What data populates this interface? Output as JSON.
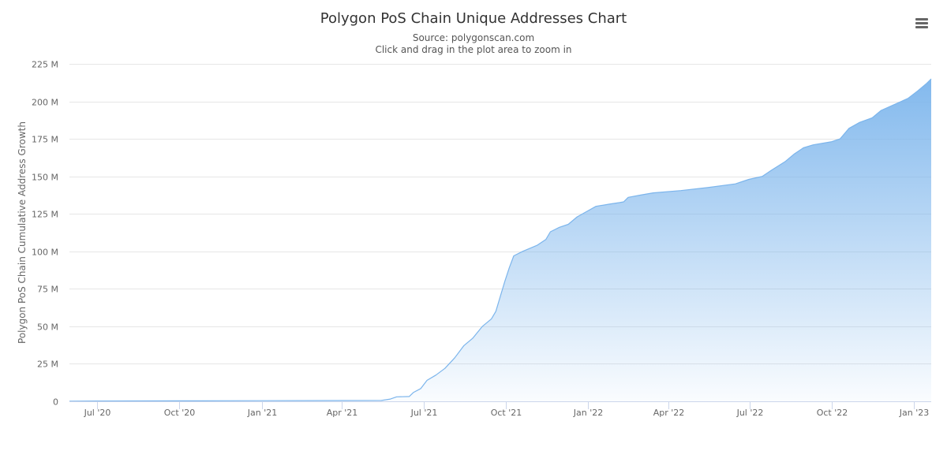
{
  "chart_data": {
    "type": "area",
    "title": "Polygon PoS Chain Unique Addresses Chart",
    "subtitle_lines": [
      "Source: polygonscan.com",
      "Click and drag in the plot area to zoom in"
    ],
    "ylabel": "Polygon PoS Chain Cumulative Address Growth",
    "xlabel": "",
    "ylim": [
      0,
      225
    ],
    "y_unit": "M",
    "y_ticks": [
      {
        "value": 0,
        "label": "0"
      },
      {
        "value": 25,
        "label": "25 M"
      },
      {
        "value": 50,
        "label": "50 M"
      },
      {
        "value": 75,
        "label": "75 M"
      },
      {
        "value": 100,
        "label": "100 M"
      },
      {
        "value": 125,
        "label": "125 M"
      },
      {
        "value": 150,
        "label": "150 M"
      },
      {
        "value": 175,
        "label": "175 M"
      },
      {
        "value": 200,
        "label": "200 M"
      },
      {
        "value": 225,
        "label": "225 M"
      }
    ],
    "xlim": [
      "2020-05-31",
      "2023-01-20"
    ],
    "x_ticks": [
      {
        "date": "2020-07-01",
        "label": "Jul '20"
      },
      {
        "date": "2020-10-01",
        "label": "Oct '20"
      },
      {
        "date": "2021-01-01",
        "label": "Jan '21"
      },
      {
        "date": "2021-04-01",
        "label": "Apr '21"
      },
      {
        "date": "2021-07-01",
        "label": "Jul '21"
      },
      {
        "date": "2021-10-01",
        "label": "Oct '21"
      },
      {
        "date": "2022-01-01",
        "label": "Jan '22"
      },
      {
        "date": "2022-04-01",
        "label": "Apr '22"
      },
      {
        "date": "2022-07-01",
        "label": "Jul '22"
      },
      {
        "date": "2022-10-01",
        "label": "Oct '22"
      },
      {
        "date": "2023-01-01",
        "label": "Jan '23"
      }
    ],
    "grid": true,
    "legend": "none",
    "series": [
      {
        "name": "Polygon PoS Chain Cumulative Address Growth",
        "color": "#7cb5ec",
        "points": [
          [
            "2020-05-31",
            0.1
          ],
          [
            "2020-07-01",
            0.2
          ],
          [
            "2020-10-01",
            0.3
          ],
          [
            "2021-01-01",
            0.4
          ],
          [
            "2021-04-01",
            0.5
          ],
          [
            "2021-05-15",
            0.6
          ],
          [
            "2021-05-25",
            1.5
          ],
          [
            "2021-06-01",
            3.0
          ],
          [
            "2021-06-15",
            3.2
          ],
          [
            "2021-06-20",
            6.0
          ],
          [
            "2021-06-28",
            8.5
          ],
          [
            "2021-07-05",
            14.0
          ],
          [
            "2021-07-15",
            17.5
          ],
          [
            "2021-07-25",
            22.0
          ],
          [
            "2021-08-05",
            29.0
          ],
          [
            "2021-08-15",
            37.0
          ],
          [
            "2021-08-25",
            42.0
          ],
          [
            "2021-09-05",
            50.0
          ],
          [
            "2021-09-15",
            55.0
          ],
          [
            "2021-09-20",
            60.0
          ],
          [
            "2021-09-25",
            70.0
          ],
          [
            "2021-09-30",
            80.0
          ],
          [
            "2021-10-05",
            89.0
          ],
          [
            "2021-10-10",
            97.0
          ],
          [
            "2021-10-20",
            100.0
          ],
          [
            "2021-11-05",
            104.0
          ],
          [
            "2021-11-15",
            108.0
          ],
          [
            "2021-11-20",
            113.0
          ],
          [
            "2021-11-30",
            116.0
          ],
          [
            "2021-12-10",
            118.0
          ],
          [
            "2021-12-20",
            123.0
          ],
          [
            "2022-01-01",
            127.0
          ],
          [
            "2022-01-10",
            130.0
          ],
          [
            "2022-01-25",
            131.5
          ],
          [
            "2022-02-05",
            132.5
          ],
          [
            "2022-02-10",
            133.0
          ],
          [
            "2022-02-15",
            136.0
          ],
          [
            "2022-03-01",
            137.5
          ],
          [
            "2022-03-15",
            139.0
          ],
          [
            "2022-04-15",
            140.5
          ],
          [
            "2022-05-15",
            142.5
          ],
          [
            "2022-06-15",
            145.0
          ],
          [
            "2022-06-30",
            148.0
          ],
          [
            "2022-07-15",
            150.0
          ],
          [
            "2022-07-25",
            154.0
          ],
          [
            "2022-08-10",
            160.0
          ],
          [
            "2022-08-20",
            165.0
          ],
          [
            "2022-08-30",
            169.0
          ],
          [
            "2022-09-10",
            171.0
          ],
          [
            "2022-09-30",
            173.0
          ],
          [
            "2022-10-10",
            175.0
          ],
          [
            "2022-10-20",
            182.0
          ],
          [
            "2022-11-01",
            186.0
          ],
          [
            "2022-11-15",
            189.0
          ],
          [
            "2022-11-25",
            194.0
          ],
          [
            "2022-12-10",
            198.0
          ],
          [
            "2022-12-25",
            202.0
          ],
          [
            "2023-01-05",
            207.0
          ],
          [
            "2023-01-15",
            212.0
          ],
          [
            "2023-01-20",
            215.0
          ]
        ]
      }
    ]
  }
}
